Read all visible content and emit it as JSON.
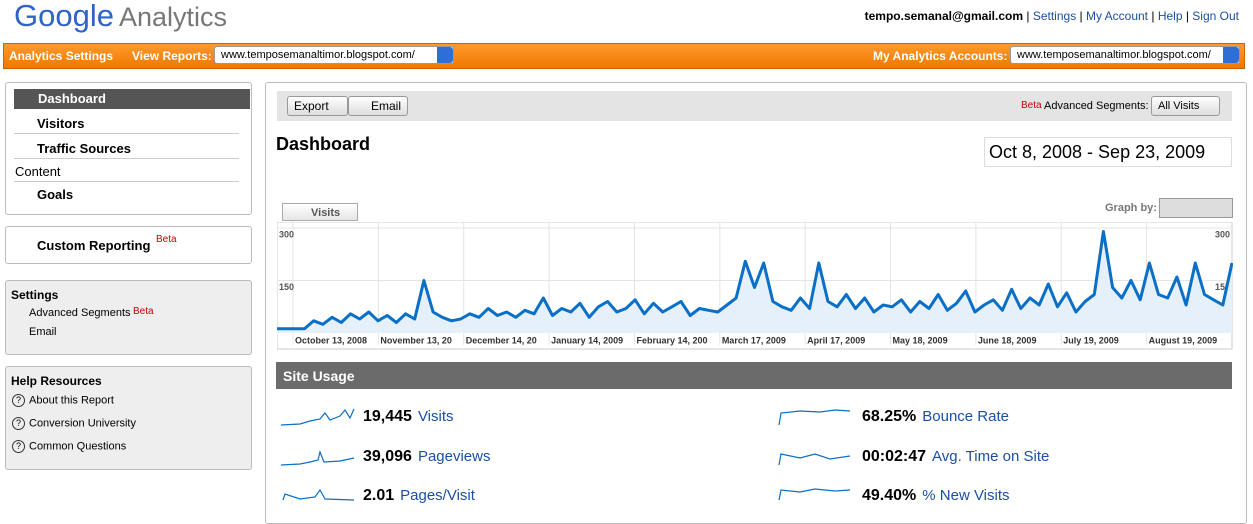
{
  "header": {
    "logo_google": "Google",
    "logo_analytics": "Analytics",
    "email": "tempo.semanal@gmail.com",
    "links": [
      "Settings",
      "My Account",
      "Help",
      "Sign Out"
    ]
  },
  "nav_bar": {
    "analytics_settings": "Analytics Settings",
    "view_reports": "View Reports:",
    "view_reports_site": "www.temposemanaltimor.blogspot.com/",
    "accounts": "My Analytics Accounts:",
    "accounts_site": "www.temposemanaltimor.blogspot.com/"
  },
  "sidebar": {
    "reports": [
      "Dashboard",
      "Visitors",
      "Traffic Sources",
      "Content",
      "Goals"
    ],
    "custom_reporting": "Custom Reporting",
    "custom_reporting_beta": "Beta",
    "settings": {
      "title": "Settings",
      "advanced_segments": "Advanced Segments",
      "beta": "Beta",
      "email": "Email"
    },
    "help": {
      "title": "Help Resources",
      "items": [
        "About this Report",
        "Conversion University",
        "Common Questions"
      ]
    }
  },
  "toolbar": {
    "export": "Export",
    "email": "Email",
    "beta": "Beta",
    "advanced_segments": "Advanced Segments:",
    "segment": "All Visits"
  },
  "report": {
    "title": "Dashboard",
    "date_range": "Oct 8, 2008 - Sep 23, 2009",
    "tab": "Visits",
    "graph_by": "Graph by:"
  },
  "chart_data": {
    "type": "line",
    "color": "#0a6fc7",
    "ylim": [
      0,
      300
    ],
    "yticks": [
      150,
      300
    ],
    "xticks": [
      "October 13, 2008",
      "November 13, 20",
      "December 14, 20",
      "January 14, 2009",
      "February 14, 200",
      "March 17, 2009",
      "April 17, 2009",
      "May 18, 2009",
      "June 18, 2009",
      "July 19, 2009",
      "August 19, 2009"
    ],
    "values": [
      12,
      12,
      12,
      12,
      35,
      25,
      45,
      30,
      55,
      40,
      60,
      35,
      50,
      30,
      55,
      40,
      150,
      60,
      45,
      35,
      40,
      55,
      45,
      70,
      50,
      60,
      45,
      65,
      55,
      100,
      50,
      70,
      60,
      85,
      45,
      75,
      90,
      60,
      70,
      95,
      55,
      85,
      60,
      75,
      90,
      50,
      70,
      65,
      60,
      80,
      100,
      205,
      130,
      200,
      90,
      75,
      65,
      100,
      70,
      200,
      90,
      75,
      110,
      70,
      100,
      60,
      80,
      75,
      95,
      60,
      90,
      70,
      110,
      65,
      85,
      120,
      60,
      80,
      95,
      65,
      125,
      70,
      100,
      80,
      140,
      75,
      115,
      60,
      90,
      110,
      290,
      130,
      100,
      150,
      95,
      200,
      110,
      100,
      160,
      80,
      200,
      110,
      95,
      80,
      200
    ]
  },
  "site_usage": {
    "title": "Site Usage",
    "metrics": [
      {
        "value": "19,445",
        "label": "Visits"
      },
      {
        "value": "39,096",
        "label": "Pageviews"
      },
      {
        "value": "2.01",
        "label": "Pages/Visit"
      },
      {
        "value": "68.25%",
        "label": "Bounce Rate"
      },
      {
        "value": "00:02:47",
        "label": "Avg. Time on Site"
      },
      {
        "value": "49.40%",
        "label": "% New Visits"
      }
    ]
  }
}
